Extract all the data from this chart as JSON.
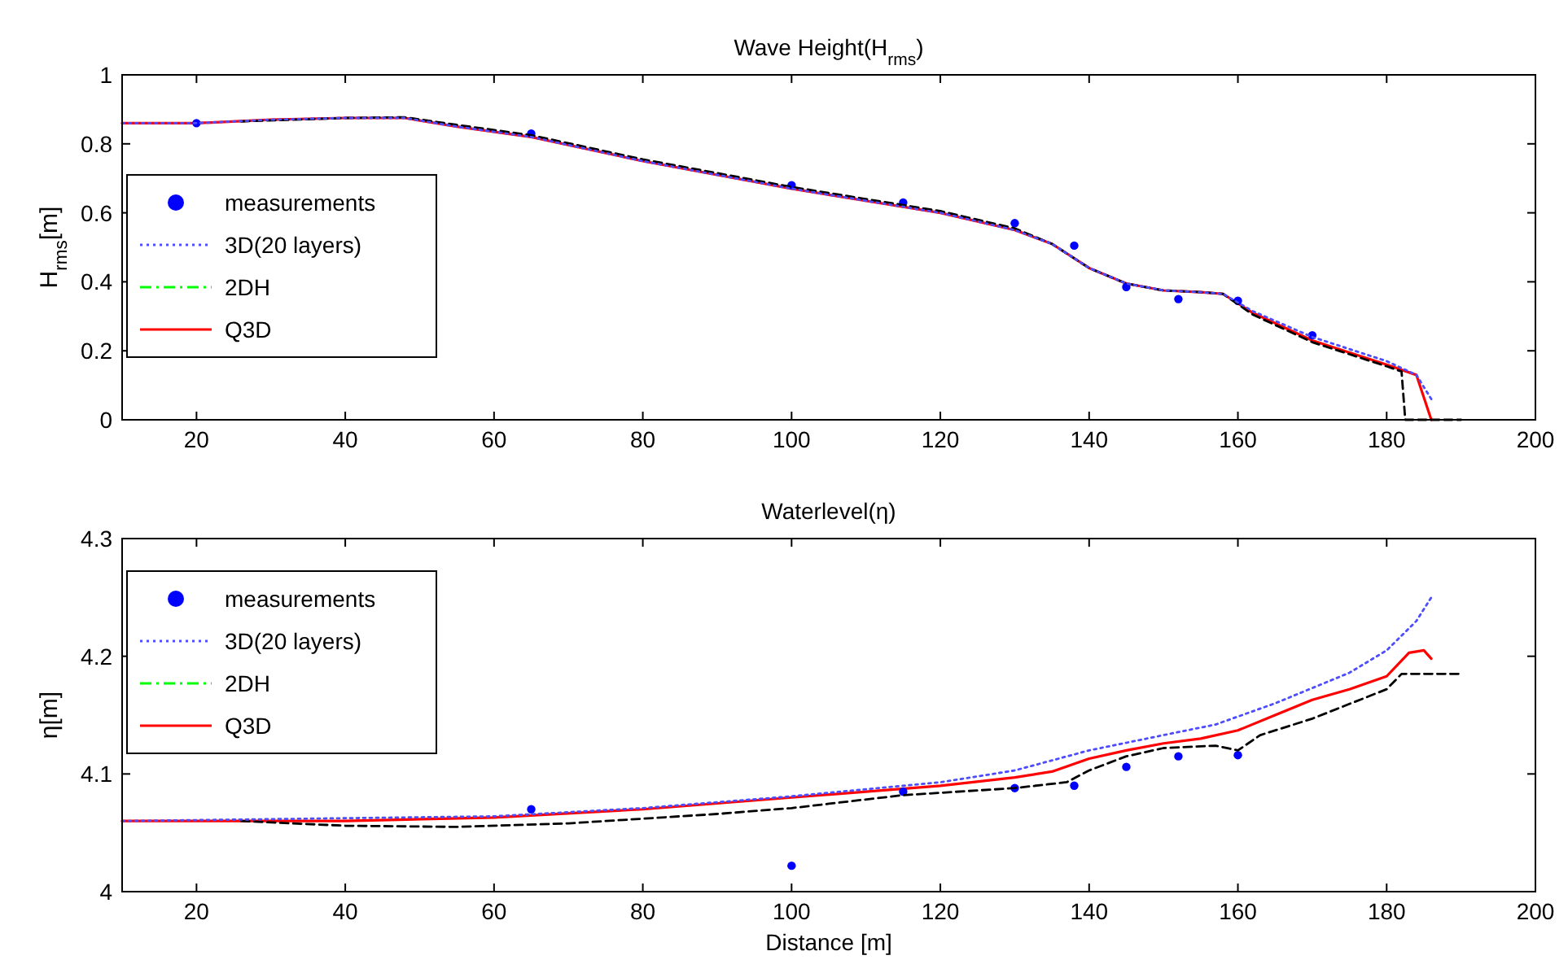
{
  "chart_data": [
    {
      "type": "line",
      "title": "Wave Height(H$_{rms}$)",
      "ylabel": "H$_{rms}$[m]",
      "xlim": [
        10,
        200
      ],
      "xticks": [
        20,
        40,
        60,
        80,
        100,
        120,
        140,
        160,
        180,
        200
      ],
      "ylim": [
        0,
        1
      ],
      "yticks": [
        0,
        0.2,
        0.4,
        0.6,
        0.8,
        1
      ],
      "legend": "left",
      "grid": false,
      "series": [
        {
          "name": "measurements",
          "type": "scatter",
          "marker": "circle",
          "color": "#0000ff",
          "x": [
            20,
            65,
            100,
            115,
            130,
            138,
            145,
            152,
            160,
            170
          ],
          "values": [
            0.86,
            0.83,
            0.68,
            0.63,
            0.57,
            0.505,
            0.385,
            0.35,
            0.345,
            0.245
          ]
        },
        {
          "type": "line",
          "line_style": "dashed",
          "color": "#000000",
          "x": [
            26,
            40,
            48,
            55,
            65,
            80,
            100,
            120,
            130,
            135,
            140,
            145,
            150,
            155,
            158,
            162,
            170,
            180,
            182,
            182.5,
            190
          ],
          "values": [
            0.865,
            0.875,
            0.877,
            0.855,
            0.825,
            0.755,
            0.675,
            0.605,
            0.555,
            0.51,
            0.44,
            0.395,
            0.375,
            0.37,
            0.365,
            0.305,
            0.225,
            0.155,
            0.14,
            0,
            0
          ]
        },
        {
          "name": "3D(20 layers)",
          "type": "line",
          "line_style": "dotted",
          "color": "#4d4dff",
          "x": [
            10,
            20,
            30,
            40,
            48,
            55,
            65,
            80,
            100,
            120,
            130,
            135,
            140,
            145,
            150,
            155,
            158,
            162,
            170,
            180,
            184,
            186
          ],
          "values": [
            0.86,
            0.86,
            0.87,
            0.875,
            0.875,
            0.85,
            0.82,
            0.75,
            0.67,
            0.6,
            0.55,
            0.51,
            0.44,
            0.395,
            0.375,
            0.37,
            0.365,
            0.315,
            0.24,
            0.17,
            0.13,
            0.06
          ]
        },
        {
          "name": "2DH",
          "line_style": "dashdot",
          "color": "#00ff00"
        },
        {
          "name": "Q3D",
          "line_style": "solid",
          "color": "#ff0000",
          "x": [
            10,
            20,
            30,
            40,
            48,
            55,
            65,
            80,
            100,
            120,
            130,
            135,
            140,
            145,
            150,
            155,
            158,
            162,
            170,
            180,
            184,
            186
          ],
          "values": [
            0.86,
            0.86,
            0.87,
            0.875,
            0.875,
            0.85,
            0.82,
            0.75,
            0.67,
            0.6,
            0.55,
            0.51,
            0.44,
            0.395,
            0.375,
            0.37,
            0.365,
            0.31,
            0.23,
            0.16,
            0.13,
            0
          ]
        }
      ]
    },
    {
      "type": "line",
      "title": "Waterlevel(η)",
      "xlabel": "Distance [m]",
      "ylabel": "η[m]",
      "xlim": [
        10,
        200
      ],
      "xticks": [
        20,
        40,
        60,
        80,
        100,
        120,
        140,
        160,
        180,
        200
      ],
      "ylim": [
        4,
        4.3
      ],
      "yticks": [
        4,
        4.1,
        4.2,
        4.3
      ],
      "legend": "top left",
      "grid": false,
      "series": [
        {
          "name": "measurements",
          "type": "scatter",
          "marker": "circle",
          "color": "#0000ff",
          "x": [
            65,
            100,
            115,
            130,
            138,
            145,
            152,
            160
          ],
          "values": [
            4.07,
            4.022,
            4.085,
            4.088,
            4.09,
            4.106,
            4.115,
            4.116
          ]
        },
        {
          "type": "line",
          "line_style": "dashed",
          "color": "#000000",
          "x": [
            26,
            40,
            55,
            70,
            90,
            100,
            115,
            130,
            137,
            140,
            145,
            150,
            157,
            160,
            163,
            170,
            180,
            182,
            190
          ],
          "values": [
            4.06,
            4.056,
            4.055,
            4.058,
            4.066,
            4.071,
            4.082,
            4.088,
            4.093,
            4.103,
            4.115,
            4.122,
            4.124,
            4.12,
            4.133,
            4.147,
            4.172,
            4.185,
            4.185
          ]
        },
        {
          "name": "3D(20 layers)",
          "type": "line",
          "line_style": "dotted",
          "color": "#4d4dff",
          "x": [
            10,
            60,
            80,
            100,
            120,
            130,
            140,
            150,
            157,
            165,
            175,
            180,
            184,
            186
          ],
          "values": [
            4.06,
            4.064,
            4.071,
            4.081,
            4.093,
            4.103,
            4.12,
            4.133,
            4.142,
            4.16,
            4.186,
            4.205,
            4.23,
            4.25
          ]
        },
        {
          "name": "2DH",
          "line_style": "dashdot",
          "color": "#00ff00"
        },
        {
          "name": "Q3D",
          "line_style": "solid",
          "color": "#ff0000",
          "x": [
            10,
            40,
            60,
            80,
            100,
            120,
            130,
            135,
            140,
            145,
            150,
            155,
            160,
            165,
            170,
            175,
            180,
            183,
            185,
            186
          ],
          "values": [
            4.06,
            4.06,
            4.063,
            4.07,
            4.08,
            4.09,
            4.097,
            4.102,
            4.113,
            4.12,
            4.126,
            4.13,
            4.137,
            4.15,
            4.163,
            4.172,
            4.183,
            4.203,
            4.205,
            4.198
          ]
        }
      ]
    }
  ]
}
